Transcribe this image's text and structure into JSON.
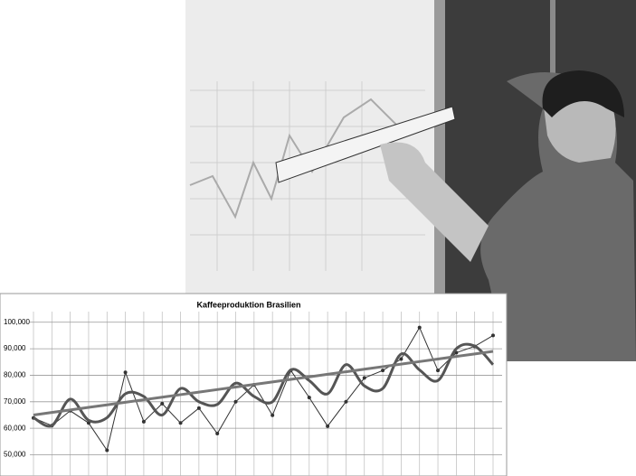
{
  "chart_data": {
    "type": "line",
    "title": "Kaffeeproduktion Brasilien",
    "categories": [
      null,
      null,
      null,
      null,
      null,
      null,
      null,
      null,
      null,
      null,
      null,
      null,
      null,
      null,
      null,
      null,
      null,
      null,
      null,
      null,
      null,
      null,
      null,
      null,
      null,
      null
    ],
    "series": [
      {
        "color": "#333333",
        "markers": true,
        "width": 1,
        "values": [
          63900,
          61000,
          66600,
          62000,
          51700,
          81100,
          62500,
          69300,
          62000,
          67600,
          58000,
          70000,
          76400,
          64900,
          81800,
          71600,
          60800,
          70000,
          79000,
          81800,
          86100,
          98000,
          81800,
          88500,
          90900,
          95000
        ]
      },
      {
        "color": "#555555",
        "markers": false,
        "width": 3,
        "smooth": true,
        "values": [
          64000,
          61000,
          71000,
          63000,
          64000,
          73000,
          72000,
          65000,
          75000,
          70000,
          69000,
          77000,
          72000,
          70000,
          82000,
          78000,
          73000,
          84000,
          76000,
          75000,
          88000,
          82000,
          78000,
          90000,
          91000,
          84000
        ]
      },
      {
        "color": "#777777",
        "markers": false,
        "width": 3,
        "values": [
          65000,
          65960,
          66920,
          67880,
          68840,
          69800,
          70760,
          71720,
          72680,
          73640,
          74600,
          75560,
          76520,
          77480,
          78440,
          79400,
          80360,
          81320,
          82280,
          83240,
          84200,
          85160,
          86120,
          87080,
          88040,
          89000
        ]
      }
    ],
    "ylim": [
      42000,
      104000
    ],
    "yticks": [
      {
        "value": 50000,
        "label": "50,000"
      },
      {
        "value": 60000,
        "label": "60,000"
      },
      {
        "value": 70000,
        "label": "70,000"
      },
      {
        "value": 80000,
        "label": "80,000"
      },
      {
        "value": 90000,
        "label": "90,000"
      },
      {
        "value": 100000,
        "label": "100,000"
      }
    ],
    "grid": true
  }
}
